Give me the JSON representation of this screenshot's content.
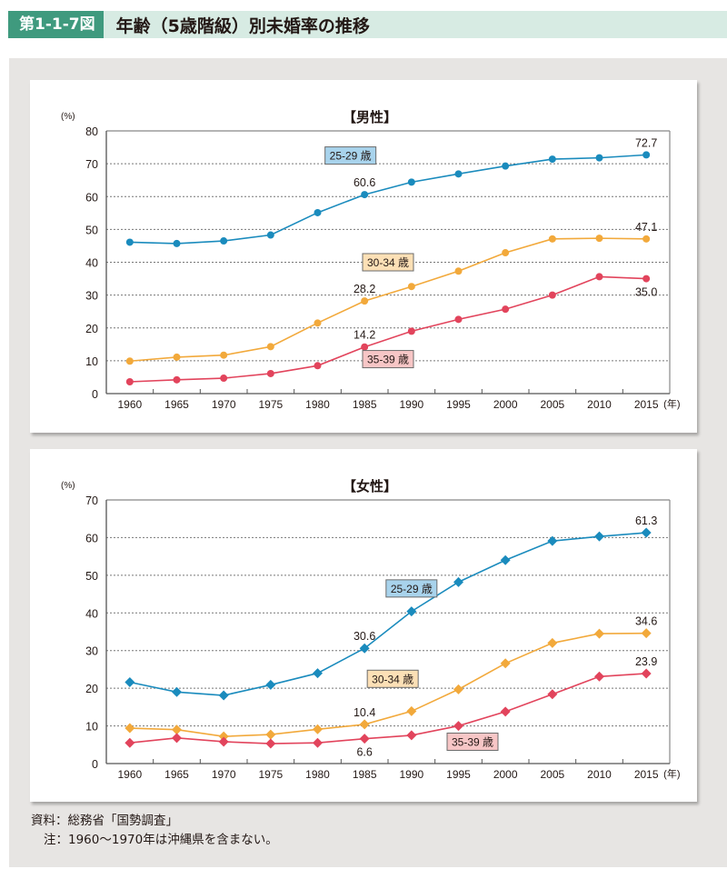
{
  "header": {
    "figure_number": "第1-1-7図",
    "title": "年齢（5歳階級）別未婚率の推移"
  },
  "notes": {
    "source": "資料：総務省「国勢調査」",
    "note": "注：1960〜1970年は沖縄県を含まない。"
  },
  "colors": {
    "header_band": "#d7ebe3",
    "header_number_bg": "#3f9a7e",
    "series_25_29": "#1a8bbd",
    "series_30_34": "#f2a93b",
    "series_35_39": "#e2445c",
    "label_25_29_bg": "#a8d3ec",
    "label_30_34_bg": "#fce0b6",
    "label_35_39_bg": "#f7c6c6"
  },
  "chart_data": [
    {
      "type": "line",
      "title": "【男性】",
      "ylabel": "(%)",
      "xlabel": "(年)",
      "ylim": [
        0,
        80
      ],
      "yticks": [
        0,
        10,
        20,
        30,
        40,
        50,
        60,
        70,
        80
      ],
      "grid": true,
      "marker": "circle",
      "categories": [
        "1960",
        "1965",
        "1970",
        "1975",
        "1980",
        "1985",
        "1990",
        "1995",
        "2000",
        "2005",
        "2010",
        "2015"
      ],
      "series": [
        {
          "name": "25-29 歳",
          "key": "s25",
          "values": [
            46.1,
            45.7,
            46.5,
            48.3,
            55.1,
            60.6,
            64.4,
            66.9,
            69.3,
            71.4,
            71.8,
            72.7
          ]
        },
        {
          "name": "30-34 歳",
          "key": "s30",
          "values": [
            9.9,
            11.1,
            11.7,
            14.3,
            21.5,
            28.2,
            32.6,
            37.3,
            42.9,
            47.1,
            47.3,
            47.1
          ]
        },
        {
          "name": "35-39 歳",
          "key": "s35",
          "values": [
            3.6,
            4.2,
            4.7,
            6.1,
            8.5,
            14.2,
            19.0,
            22.6,
            25.7,
            30.0,
            35.6,
            35.0
          ]
        }
      ],
      "annotations": [
        {
          "series": 0,
          "index": 5,
          "text": "60.6",
          "pos": "above"
        },
        {
          "series": 0,
          "index": 11,
          "text": "72.7",
          "pos": "above"
        },
        {
          "series": 1,
          "index": 5,
          "text": "28.2",
          "pos": "above"
        },
        {
          "series": 1,
          "index": 11,
          "text": "47.1",
          "pos": "above"
        },
        {
          "series": 2,
          "index": 5,
          "text": "14.2",
          "pos": "above"
        },
        {
          "series": 2,
          "index": 11,
          "text": "35.0",
          "pos": "below"
        }
      ],
      "series_labels": [
        {
          "series": 0,
          "text": "25-29 歳",
          "x": 1983.5,
          "y": 72.5
        },
        {
          "series": 1,
          "text": "30-34 歳",
          "x": 1987.5,
          "y": 40
        },
        {
          "series": 2,
          "text": "35-39 歳",
          "x": 1987.5,
          "y": 10.5
        }
      ]
    },
    {
      "type": "line",
      "title": "【女性】",
      "ylabel": "(%)",
      "xlabel": "(年)",
      "ylim": [
        0,
        70
      ],
      "yticks": [
        0,
        10,
        20,
        30,
        40,
        50,
        60,
        70
      ],
      "grid": true,
      "marker": "diamond",
      "categories": [
        "1960",
        "1965",
        "1970",
        "1975",
        "1980",
        "1985",
        "1990",
        "1995",
        "2000",
        "2005",
        "2010",
        "2015"
      ],
      "series": [
        {
          "name": "25-29 歳",
          "key": "s25",
          "values": [
            21.6,
            19.0,
            18.1,
            20.9,
            24.0,
            30.6,
            40.4,
            48.2,
            54.0,
            59.1,
            60.3,
            61.3
          ]
        },
        {
          "name": "30-34 歳",
          "key": "s30",
          "values": [
            9.4,
            9.0,
            7.2,
            7.7,
            9.1,
            10.4,
            13.9,
            19.7,
            26.6,
            32.0,
            34.5,
            34.6
          ]
        },
        {
          "name": "35-39 歳",
          "key": "s35",
          "values": [
            5.5,
            6.8,
            5.8,
            5.3,
            5.5,
            6.6,
            7.5,
            10.0,
            13.8,
            18.4,
            23.1,
            23.9
          ]
        }
      ],
      "annotations": [
        {
          "series": 0,
          "index": 5,
          "text": "30.6",
          "pos": "above"
        },
        {
          "series": 0,
          "index": 11,
          "text": "61.3",
          "pos": "above"
        },
        {
          "series": 1,
          "index": 5,
          "text": "10.4",
          "pos": "above"
        },
        {
          "series": 1,
          "index": 11,
          "text": "34.6",
          "pos": "above"
        },
        {
          "series": 2,
          "index": 5,
          "text": "6.6",
          "pos": "below"
        },
        {
          "series": 2,
          "index": 11,
          "text": "23.9",
          "pos": "above"
        }
      ],
      "series_labels": [
        {
          "series": 0,
          "text": "25-29 歳",
          "x": 1990,
          "y": 46.5
        },
        {
          "series": 1,
          "text": "30-34 歳",
          "x": 1988,
          "y": 22.5
        },
        {
          "series": 2,
          "text": "35-39 歳",
          "x": 1996.5,
          "y": 5.8
        }
      ]
    }
  ]
}
